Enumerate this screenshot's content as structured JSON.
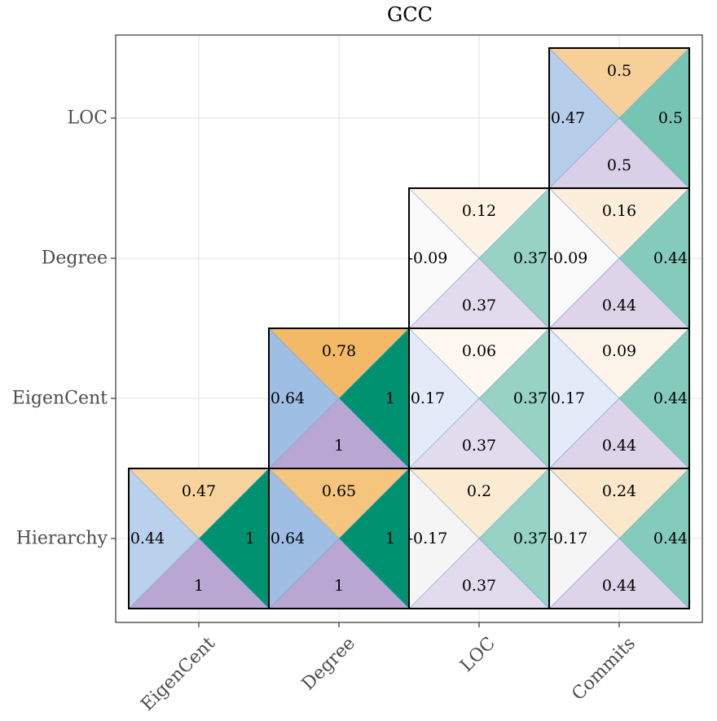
{
  "chart_data": {
    "type": "heatmap",
    "title": "GCC",
    "x_categories": [
      "EigenCent",
      "Degree",
      "LOC",
      "Commits"
    ],
    "y_categories": [
      "Hierarchy",
      "EigenCent",
      "Degree",
      "LOC"
    ],
    "cell_layout": "each cell split into four triangles: top, right, bottom, left",
    "cells": [
      {
        "x": "EigenCent",
        "y": "Hierarchy",
        "top": "0.47",
        "right": "1",
        "bottom": "1",
        "left": "0.44"
      },
      {
        "x": "Degree",
        "y": "Hierarchy",
        "top": "0.65",
        "right": "1",
        "bottom": "1",
        "left": "0.64"
      },
      {
        "x": "LOC",
        "y": "Hierarchy",
        "top": "0.2",
        "right": "0.37",
        "bottom": "0.37",
        "left": "-0.17"
      },
      {
        "x": "Commits",
        "y": "Hierarchy",
        "top": "0.24",
        "right": "0.44",
        "bottom": "0.44",
        "left": "-0.17"
      },
      {
        "x": "Degree",
        "y": "EigenCent",
        "top": "0.78",
        "right": "1",
        "bottom": "1",
        "left": "0.64"
      },
      {
        "x": "LOC",
        "y": "EigenCent",
        "top": "0.06",
        "right": "0.37",
        "bottom": "0.37",
        "left": "0.17"
      },
      {
        "x": "Commits",
        "y": "EigenCent",
        "top": "0.09",
        "right": "0.44",
        "bottom": "0.44",
        "left": "0.17"
      },
      {
        "x": "LOC",
        "y": "Degree",
        "top": "0.12",
        "right": "0.37",
        "bottom": "0.37",
        "left": "-0.09"
      },
      {
        "x": "Commits",
        "y": "Degree",
        "top": "0.16",
        "right": "0.44",
        "bottom": "0.44",
        "left": "-0.09"
      },
      {
        "x": "Commits",
        "y": "LOC",
        "top": "0.5",
        "right": "0.5",
        "bottom": "0.5",
        "left": "0.47"
      }
    ],
    "colors": {
      "top": "#f0a840",
      "right": "#009270",
      "bottom": "#b9a6d2",
      "left": "#6e9ed6",
      "negative": "#8c8c8c",
      "background": "#ffffff"
    }
  }
}
